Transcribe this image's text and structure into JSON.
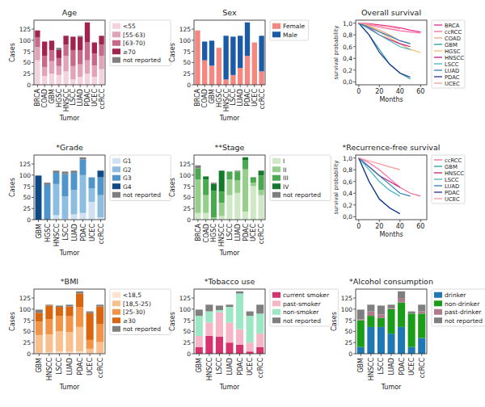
{
  "chart_data": [
    {
      "type": "bar",
      "title": "Age",
      "x_label": "Tumor",
      "y_label": "Cases",
      "stacked": true,
      "legend": "right",
      "categories": [
        "BRCA",
        "COAD",
        "GBM",
        "HGSC",
        "HNSCC",
        "LSCC",
        "LUAD",
        "PDAC",
        "UCEC",
        "ccRCC"
      ],
      "ylim": [
        0,
        145
      ],
      "yticks": [
        0,
        25,
        50,
        75,
        100,
        125
      ],
      "series": [
        {
          "name": "<55",
          "color": "#f3d4de",
          "values": [
            55,
            20,
            25,
            22,
            30,
            12,
            18,
            25,
            18,
            35
          ]
        },
        {
          "name": "[55-63)",
          "color": "#e2a3b8",
          "values": [
            30,
            20,
            28,
            20,
            35,
            30,
            28,
            30,
            25,
            30
          ]
        },
        {
          "name": "[63-70)",
          "color": "#c8698a",
          "values": [
            22,
            25,
            25,
            18,
            25,
            36,
            32,
            40,
            27,
            25
          ]
        },
        {
          "name": "≥70",
          "color": "#a3234f",
          "values": [
            15,
            32,
            21,
            18,
            20,
            30,
            30,
            45,
            25,
            20
          ]
        },
        {
          "name": "not reported",
          "color": "#7f7f7f",
          "values": [
            0,
            0,
            0,
            5,
            0,
            0,
            2,
            0,
            0,
            0
          ]
        }
      ]
    },
    {
      "type": "bar",
      "title": "Sex",
      "x_label": "Tumor",
      "y_label": "Cases",
      "stacked": true,
      "legend": "right",
      "categories": [
        "BRCA",
        "COAD",
        "GBM",
        "HGSC",
        "HNSCC",
        "LSCC",
        "LUAD",
        "PDAC",
        "UCEC",
        "ccRCC"
      ],
      "ylim": [
        0,
        145
      ],
      "yticks": [
        0,
        25,
        50,
        75,
        100,
        125
      ],
      "series": [
        {
          "name": "Female",
          "color": "#f4877f",
          "values": [
            122,
            55,
            43,
            83,
            12,
            22,
            38,
            65,
            95,
            30
          ]
        },
        {
          "name": "Male",
          "color": "#1a5aa6",
          "values": [
            0,
            42,
            56,
            0,
            98,
            86,
            72,
            75,
            0,
            80
          ]
        }
      ]
    },
    {
      "type": "line",
      "title": "Overall survival",
      "x_label": "Months",
      "y_label": "survival probability",
      "legend": "right",
      "x": [
        0,
        10,
        20,
        30,
        40,
        50,
        60
      ],
      "xlim": [
        -3,
        66
      ],
      "xticks": [
        0,
        20,
        40,
        60
      ],
      "ylim": [
        -0.05,
        1.05
      ],
      "yticks": [
        {
          "value": 0,
          "label": "0,0"
        },
        {
          "value": 0.2,
          "label": "0,2"
        },
        {
          "value": 0.4,
          "label": "0,4"
        },
        {
          "value": 0.6,
          "label": "0,6"
        },
        {
          "value": 0.8,
          "label": "0,8"
        },
        {
          "value": 1,
          "label": "1,0"
        }
      ],
      "series": [
        {
          "name": "BRCA",
          "color": "#e7298a",
          "values": [
            1,
            0.99,
            0.97,
            0.95,
            0.92,
            0.88,
            0.85
          ]
        },
        {
          "name": "ccRCC",
          "color": "#f768a1",
          "values": [
            1,
            0.97,
            0.93,
            0.9,
            0.87,
            0.85,
            0.83
          ]
        },
        {
          "name": "COAD",
          "color": "#f4a582",
          "values": [
            1,
            0.95,
            0.88,
            0.8,
            0.7,
            0.65,
            null
          ]
        },
        {
          "name": "GBM",
          "color": "#1b9e9e",
          "values": [
            1,
            0.8,
            0.55,
            0.3,
            0.15,
            0.05,
            null
          ]
        },
        {
          "name": "HGSC",
          "color": "#fdb863",
          "values": [
            1,
            0.95,
            0.85,
            0.75,
            0.65,
            0.55,
            0.5
          ]
        },
        {
          "name": "HNSCC",
          "color": "#c51b7d",
          "values": [
            1,
            0.92,
            0.8,
            0.72,
            0.65,
            0.6,
            null
          ]
        },
        {
          "name": "LSCC",
          "color": "#41b6c4",
          "values": [
            1,
            0.9,
            0.8,
            0.7,
            0.6,
            0.55,
            null
          ]
        },
        {
          "name": "LUAD",
          "color": "#2c7fb8",
          "values": [
            1,
            0.93,
            0.85,
            0.78,
            0.7,
            0.65,
            null
          ]
        },
        {
          "name": "PDAC",
          "color": "#253494",
          "values": [
            1,
            0.8,
            0.5,
            0.3,
            0.15,
            0.08,
            null
          ]
        },
        {
          "name": "UCEC",
          "color": "#fb9a99",
          "values": [
            1,
            0.98,
            0.95,
            0.93,
            0.9,
            null,
            null
          ]
        }
      ]
    },
    {
      "type": "bar",
      "title": "*Grade",
      "x_label": "Tumor",
      "y_label": "Cases",
      "stacked": true,
      "legend": "right",
      "categories": [
        "GBM",
        "HGSC",
        "HNSCC",
        "LSCC",
        "LUAD",
        "PDAC",
        "UCEC",
        "ccRCC"
      ],
      "ylim": [
        0,
        145
      ],
      "yticks": [
        0,
        25,
        50,
        75,
        100,
        125
      ],
      "series": [
        {
          "name": "G1",
          "color": "#cfe1f2",
          "values": [
            0,
            0,
            10,
            2,
            12,
            15,
            40,
            5
          ]
        },
        {
          "name": "G2",
          "color": "#8dbde0",
          "values": [
            0,
            0,
            70,
            50,
            55,
            85,
            30,
            50
          ]
        },
        {
          "name": "G3",
          "color": "#4f95c9",
          "values": [
            0,
            78,
            25,
            50,
            38,
            35,
            25,
            40
          ]
        },
        {
          "name": "G4",
          "color": "#0d4a86",
          "values": [
            99,
            0,
            0,
            0,
            0,
            0,
            0,
            15
          ]
        },
        {
          "name": "not reported",
          "color": "#7f7f7f",
          "values": [
            0,
            5,
            5,
            6,
            5,
            5,
            0,
            0
          ]
        }
      ]
    },
    {
      "type": "bar",
      "title": "**Stage",
      "x_label": "Tumor",
      "y_label": "Cases",
      "stacked": true,
      "legend": "right",
      "categories": [
        "BRCA",
        "COAD",
        "HGSC",
        "HNSCC",
        "LSCC",
        "LUAD",
        "PDAC",
        "UCEC",
        "ccRCC"
      ],
      "ylim": [
        0,
        145
      ],
      "yticks": [
        0,
        25,
        50,
        75,
        100,
        125
      ],
      "series": [
        {
          "name": "I",
          "color": "#cfe8c6",
          "values": [
            15,
            15,
            0,
            8,
            55,
            60,
            18,
            75,
            55
          ]
        },
        {
          "name": "II",
          "color": "#96cf8c",
          "values": [
            75,
            40,
            5,
            30,
            35,
            28,
            95,
            8,
            12
          ]
        },
        {
          "name": "III",
          "color": "#4aa84f",
          "values": [
            25,
            35,
            60,
            25,
            18,
            20,
            20,
            10,
            32
          ]
        },
        {
          "name": "IV",
          "color": "#137a2d",
          "values": [
            0,
            7,
            15,
            47,
            0,
            0,
            7,
            2,
            11
          ]
        },
        {
          "name": "not reported",
          "color": "#7f7f7f",
          "values": [
            7,
            0,
            3,
            0,
            0,
            2,
            0,
            0,
            0
          ]
        }
      ]
    },
    {
      "type": "line",
      "title": "*Recurrence-free survival",
      "x_label": "Months",
      "y_label": "survival probability",
      "legend": "right",
      "x": [
        0,
        10,
        20,
        30,
        40,
        50,
        60
      ],
      "xlim": [
        -3,
        66
      ],
      "xticks": [
        0,
        20,
        40,
        60
      ],
      "ylim": [
        -0.05,
        1.05
      ],
      "yticks": [
        {
          "value": 0,
          "label": "0,0"
        },
        {
          "value": 0.2,
          "label": "0,2"
        },
        {
          "value": 0.4,
          "label": "0,4"
        },
        {
          "value": 0.6,
          "label": "0,6"
        },
        {
          "value": 0.8,
          "label": "0,8"
        },
        {
          "value": 1,
          "label": "1,0"
        }
      ],
      "series": [
        {
          "name": "ccRCC",
          "color": "#f768a1",
          "values": [
            1,
            0.92,
            0.8,
            0.65,
            0.5,
            0.4,
            0.35
          ]
        },
        {
          "name": "GBM",
          "color": "#1b9e9e",
          "values": [
            1,
            0.6,
            0.3,
            0.15,
            0.05,
            null,
            null
          ]
        },
        {
          "name": "HNSCC",
          "color": "#c51b7d",
          "values": [
            1,
            0.85,
            0.7,
            0.6,
            0.5,
            null,
            null
          ]
        },
        {
          "name": "LSCC",
          "color": "#41b6c4",
          "values": [
            1,
            0.8,
            0.6,
            0.45,
            0.35,
            null,
            null
          ]
        },
        {
          "name": "LUAD",
          "color": "#2c7fb8",
          "values": [
            1,
            0.85,
            0.7,
            0.55,
            0.4,
            0.35,
            null
          ]
        },
        {
          "name": "PDAC",
          "color": "#253494",
          "values": [
            1,
            0.6,
            0.3,
            0.15,
            0.05,
            null,
            null
          ]
        },
        {
          "name": "UCEC",
          "color": "#fb9a99",
          "values": [
            1,
            0.95,
            0.9,
            0.85,
            0.8,
            null,
            null
          ]
        }
      ]
    },
    {
      "type": "bar",
      "title": "*BMI",
      "x_label": "Tumor",
      "y_label": "Cases",
      "stacked": true,
      "legend": "right",
      "categories": [
        "GBM",
        "HNSCC",
        "LSCC",
        "LUAD",
        "PDAC",
        "UCEC",
        "ccRCC"
      ],
      "ylim": [
        0,
        145
      ],
      "yticks": [
        0,
        25,
        50,
        75,
        100,
        125
      ],
      "series": [
        {
          "name": "<18,5",
          "color": "#fde3cc",
          "values": [
            2,
            3,
            5,
            4,
            5,
            1,
            1
          ]
        },
        {
          "name": "[18,5-25)",
          "color": "#f9c08e",
          "values": [
            40,
            40,
            45,
            45,
            55,
            10,
            25
          ]
        },
        {
          "name": "[25-30)",
          "color": "#f29447",
          "values": [
            30,
            35,
            35,
            35,
            45,
            20,
            40
          ]
        },
        {
          "name": "≥30",
          "color": "#d9650e",
          "values": [
            20,
            30,
            20,
            22,
            30,
            60,
            40
          ]
        },
        {
          "name": "not reported",
          "color": "#7f7f7f",
          "values": [
            7,
            2,
            3,
            4,
            5,
            4,
            4
          ]
        }
      ]
    },
    {
      "type": "bar",
      "title": "*Tobacco use",
      "x_label": "Tumor",
      "y_label": "Cases",
      "stacked": true,
      "legend": "right",
      "categories": [
        "GBM",
        "HNSCC",
        "LSCC",
        "LUAD",
        "PDAC",
        "UCEC",
        "ccRCC"
      ],
      "ylim": [
        0,
        145
      ],
      "yticks": [
        0,
        25,
        50,
        75,
        100,
        125
      ],
      "series": [
        {
          "name": "current smoker",
          "color": "#d6336c",
          "values": [
            15,
            40,
            38,
            25,
            20,
            5,
            15
          ]
        },
        {
          "name": "past-smoker",
          "color": "#f7b6c8",
          "values": [
            25,
            30,
            55,
            45,
            35,
            20,
            30
          ]
        },
        {
          "name": "non-smoker",
          "color": "#9de8c4",
          "values": [
            45,
            25,
            5,
            35,
            80,
            60,
            45
          ]
        },
        {
          "name": "not reported",
          "color": "#7f7f7f",
          "values": [
            14,
            15,
            10,
            5,
            5,
            10,
            20
          ]
        }
      ]
    },
    {
      "type": "bar",
      "title": "*Alcohol consumption",
      "x_label": "Tumor",
      "y_label": "Cases",
      "stacked": true,
      "legend": "right",
      "categories": [
        "GBM",
        "HNSCC",
        "LSCC",
        "LUAD",
        "PDAC",
        "UCEC",
        "ccRCC"
      ],
      "ylim": [
        0,
        145
      ],
      "yticks": [
        0,
        25,
        50,
        75,
        100,
        125
      ],
      "series": [
        {
          "name": "drinker",
          "color": "#1f78b4",
          "values": [
            15,
            60,
            60,
            45,
            60,
            15,
            35
          ]
        },
        {
          "name": "non-drinker",
          "color": "#1a9e1a",
          "values": [
            60,
            25,
            20,
            55,
            55,
            75,
            55
          ]
        },
        {
          "name": "past-drinker",
          "color": "#b07b8a",
          "values": [
            2,
            10,
            8,
            3,
            10,
            0,
            5
          ]
        },
        {
          "name": "not reported",
          "color": "#7f7f7f",
          "values": [
            22,
            15,
            20,
            7,
            15,
            5,
            15
          ]
        }
      ]
    }
  ]
}
